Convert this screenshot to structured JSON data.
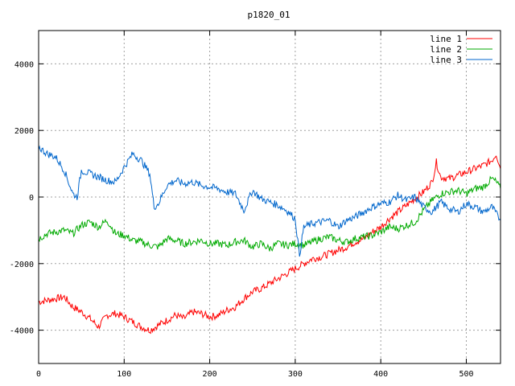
{
  "chart_data": {
    "type": "line",
    "title": "p1820_01",
    "xlabel": "",
    "ylabel": "",
    "xlim": [
      0,
      540
    ],
    "ylim": [
      -5000,
      5000
    ],
    "xticks": [
      0,
      100,
      200,
      300,
      400,
      500
    ],
    "yticks": [
      -4000,
      -2000,
      0,
      2000,
      4000
    ],
    "grid": true,
    "legend_position": "top-right",
    "series": [
      {
        "name": "line 1",
        "color": "#ff0000",
        "points": [
          [
            0,
            -3150
          ],
          [
            10,
            -3100
          ],
          [
            20,
            -3050
          ],
          [
            30,
            -3000
          ],
          [
            40,
            -3300
          ],
          [
            50,
            -3450
          ],
          [
            60,
            -3650
          ],
          [
            70,
            -3900
          ],
          [
            80,
            -3550
          ],
          [
            90,
            -3500
          ],
          [
            100,
            -3600
          ],
          [
            110,
            -3750
          ],
          [
            120,
            -3900
          ],
          [
            130,
            -4000
          ],
          [
            140,
            -3850
          ],
          [
            150,
            -3700
          ],
          [
            160,
            -3550
          ],
          [
            170,
            -3650
          ],
          [
            180,
            -3450
          ],
          [
            190,
            -3500
          ],
          [
            200,
            -3600
          ],
          [
            210,
            -3550
          ],
          [
            220,
            -3400
          ],
          [
            230,
            -3300
          ],
          [
            240,
            -3050
          ],
          [
            250,
            -2850
          ],
          [
            260,
            -2750
          ],
          [
            270,
            -2600
          ],
          [
            280,
            -2450
          ],
          [
            290,
            -2300
          ],
          [
            300,
            -2150
          ],
          [
            310,
            -2000
          ],
          [
            320,
            -1850
          ],
          [
            330,
            -1800
          ],
          [
            340,
            -1700
          ],
          [
            350,
            -1600
          ],
          [
            360,
            -1500
          ],
          [
            370,
            -1350
          ],
          [
            380,
            -1250
          ],
          [
            390,
            -1050
          ],
          [
            400,
            -900
          ],
          [
            410,
            -650
          ],
          [
            420,
            -450
          ],
          [
            430,
            -250
          ],
          [
            440,
            -50
          ],
          [
            450,
            150
          ],
          [
            460,
            450
          ],
          [
            465,
            1050
          ],
          [
            470,
            600
          ],
          [
            480,
            550
          ],
          [
            490,
            650
          ],
          [
            500,
            750
          ],
          [
            510,
            850
          ],
          [
            520,
            950
          ],
          [
            530,
            1100
          ],
          [
            535,
            1300
          ],
          [
            540,
            850
          ]
        ]
      },
      {
        "name": "line 2",
        "color": "#00aa00",
        "points": [
          [
            0,
            -1250
          ],
          [
            10,
            -1100
          ],
          [
            20,
            -1050
          ],
          [
            30,
            -1000
          ],
          [
            40,
            -1100
          ],
          [
            50,
            -850
          ],
          [
            60,
            -750
          ],
          [
            70,
            -900
          ],
          [
            80,
            -700
          ],
          [
            90,
            -1100
          ],
          [
            100,
            -1150
          ],
          [
            110,
            -1300
          ],
          [
            120,
            -1350
          ],
          [
            130,
            -1450
          ],
          [
            140,
            -1500
          ],
          [
            150,
            -1250
          ],
          [
            160,
            -1300
          ],
          [
            170,
            -1400
          ],
          [
            180,
            -1350
          ],
          [
            190,
            -1300
          ],
          [
            200,
            -1400
          ],
          [
            210,
            -1400
          ],
          [
            220,
            -1450
          ],
          [
            230,
            -1350
          ],
          [
            240,
            -1300
          ],
          [
            250,
            -1500
          ],
          [
            260,
            -1400
          ],
          [
            270,
            -1550
          ],
          [
            280,
            -1400
          ],
          [
            290,
            -1450
          ],
          [
            300,
            -1400
          ],
          [
            310,
            -1450
          ],
          [
            320,
            -1350
          ],
          [
            330,
            -1250
          ],
          [
            340,
            -1200
          ],
          [
            350,
            -1300
          ],
          [
            360,
            -1350
          ],
          [
            370,
            -1250
          ],
          [
            380,
            -1200
          ],
          [
            390,
            -1150
          ],
          [
            400,
            -1050
          ],
          [
            410,
            -900
          ],
          [
            420,
            -950
          ],
          [
            430,
            -850
          ],
          [
            440,
            -750
          ],
          [
            450,
            -400
          ],
          [
            460,
            -100
          ],
          [
            470,
            100
          ],
          [
            480,
            150
          ],
          [
            490,
            200
          ],
          [
            500,
            100
          ],
          [
            510,
            250
          ],
          [
            520,
            300
          ],
          [
            530,
            550
          ],
          [
            535,
            450
          ],
          [
            540,
            250
          ]
        ]
      },
      {
        "name": "line 3",
        "color": "#0066cc",
        "points": [
          [
            0,
            1500
          ],
          [
            10,
            1300
          ],
          [
            20,
            1200
          ],
          [
            30,
            800
          ],
          [
            40,
            100
          ],
          [
            45,
            0
          ],
          [
            50,
            800
          ],
          [
            60,
            700
          ],
          [
            70,
            600
          ],
          [
            80,
            500
          ],
          [
            90,
            450
          ],
          [
            100,
            900
          ],
          [
            110,
            1300
          ],
          [
            120,
            1100
          ],
          [
            130,
            700
          ],
          [
            135,
            -300
          ],
          [
            140,
            -200
          ],
          [
            150,
            350
          ],
          [
            160,
            500
          ],
          [
            170,
            400
          ],
          [
            180,
            450
          ],
          [
            190,
            350
          ],
          [
            200,
            300
          ],
          [
            210,
            250
          ],
          [
            220,
            150
          ],
          [
            230,
            100
          ],
          [
            240,
            -400
          ],
          [
            250,
            200
          ],
          [
            260,
            -50
          ],
          [
            270,
            -150
          ],
          [
            280,
            -250
          ],
          [
            290,
            -400
          ],
          [
            300,
            -650
          ],
          [
            305,
            -1750
          ],
          [
            310,
            -900
          ],
          [
            320,
            -800
          ],
          [
            330,
            -750
          ],
          [
            340,
            -700
          ],
          [
            350,
            -900
          ],
          [
            360,
            -700
          ],
          [
            370,
            -600
          ],
          [
            380,
            -450
          ],
          [
            390,
            -300
          ],
          [
            400,
            -200
          ],
          [
            410,
            -150
          ],
          [
            420,
            50
          ],
          [
            430,
            -100
          ],
          [
            440,
            0
          ],
          [
            450,
            -300
          ],
          [
            460,
            -450
          ],
          [
            470,
            -150
          ],
          [
            480,
            -350
          ],
          [
            490,
            -450
          ],
          [
            500,
            -200
          ],
          [
            510,
            -300
          ],
          [
            520,
            -450
          ],
          [
            530,
            -300
          ],
          [
            540,
            -700
          ]
        ]
      }
    ]
  }
}
